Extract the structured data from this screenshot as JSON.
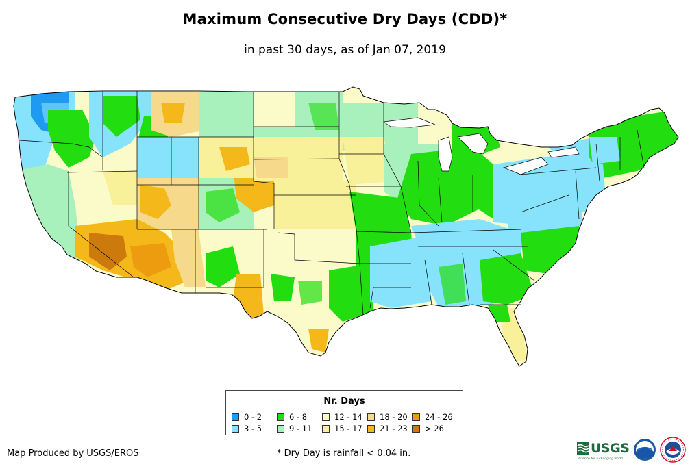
{
  "header": {
    "title": "Maximum Consecutive Dry Days (CDD)*",
    "subtitle": "in past 30 days, as of Jan 07, 2019"
  },
  "legend": {
    "title": "Nr. Days",
    "items": [
      {
        "label": "0 - 2",
        "color": "#1e9bf0"
      },
      {
        "label": "3 - 5",
        "color": "#86e3fb"
      },
      {
        "label": "6 - 8",
        "color": "#22dd10"
      },
      {
        "label": "9 - 11",
        "color": "#a8f0bc"
      },
      {
        "label": "12 - 14",
        "color": "#fbfbc9"
      },
      {
        "label": "15 - 17",
        "color": "#f9f19a"
      },
      {
        "label": "18 - 20",
        "color": "#f7d98c"
      },
      {
        "label": "21 - 23",
        "color": "#f5b81b"
      },
      {
        "label": "24 - 26",
        "color": "#ed9b0f"
      },
      {
        "label": "> 26",
        "color": "#cc7a0b"
      }
    ]
  },
  "footer": {
    "credit": "Map Produced by USGS/EROS",
    "footnote": "* Dry Day is rainfall < 0.04 in.",
    "logo_usgs": "USGS",
    "logo_usgs_tagline": "science for a changing world",
    "logo_noaa": "noaa",
    "logo_nws": "NATIONAL WEATHER SERVICE"
  }
}
